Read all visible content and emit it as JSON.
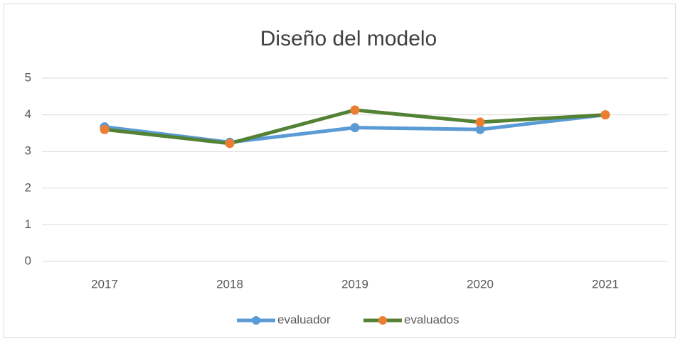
{
  "chart_data": {
    "type": "line",
    "title": "Diseño del modelo",
    "categories": [
      "2017",
      "2018",
      "2019",
      "2020",
      "2021"
    ],
    "series": [
      {
        "name": "evaluador",
        "color": "#5b9bd5",
        "marker_color": "#5b9bd5",
        "values": [
          3.67,
          3.25,
          3.65,
          3.6,
          4.0
        ]
      },
      {
        "name": "evaluados",
        "color": "#548235",
        "marker_color": "#ed7d31",
        "values": [
          3.6,
          3.22,
          4.13,
          3.8,
          4.0
        ]
      }
    ],
    "ylim": [
      0,
      5
    ],
    "yticks": [
      0,
      1,
      2,
      3,
      4,
      5
    ],
    "grid": true,
    "legend": "bottom"
  }
}
